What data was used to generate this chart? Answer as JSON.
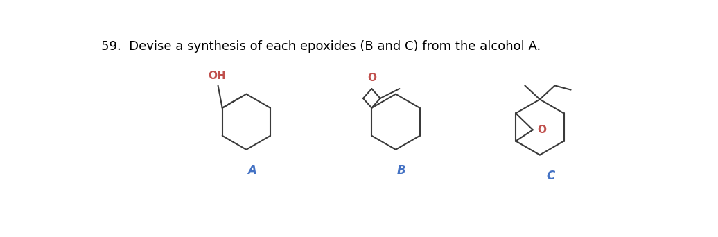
{
  "title": "59.  Devise a synthesis of each epoxides (B and C) from the alcohol A.",
  "label_A": "A",
  "label_B": "B",
  "label_C": "C",
  "label_fontsize": 12,
  "label_color": "#4472C4",
  "OH_color": "#C0504D",
  "O_color": "#C0504D",
  "line_color": "#3a3a3a",
  "line_width": 1.5,
  "bg_color": "#ffffff",
  "title_fontsize": 13
}
